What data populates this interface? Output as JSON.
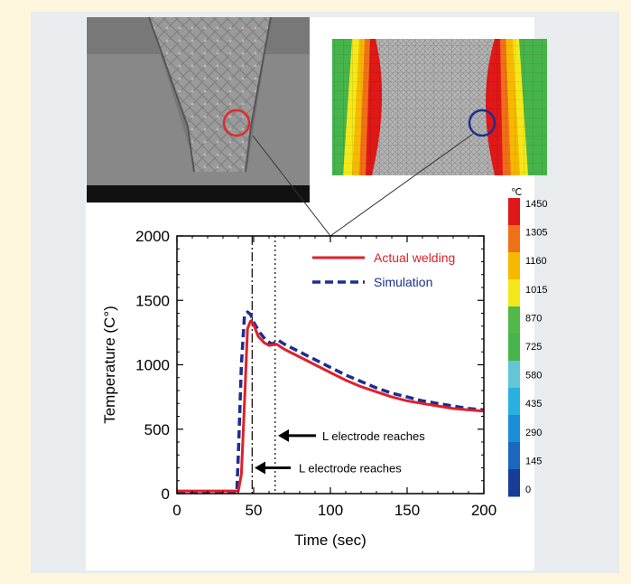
{
  "chart_data": {
    "type": "line",
    "xlabel": "Time (sec)",
    "ylabel": "Temperature (C°)",
    "xlim": [
      0,
      200
    ],
    "ylim": [
      0,
      2000
    ],
    "x_ticks": [
      0,
      50,
      100,
      150,
      200
    ],
    "y_ticks": [
      0,
      500,
      1000,
      1500,
      2000
    ],
    "legend_position": "top-right",
    "series": [
      {
        "name": "Actual welding",
        "color": "#e0202a",
        "style": "solid",
        "points": [
          [
            0,
            20
          ],
          [
            40,
            20
          ],
          [
            42,
            150
          ],
          [
            44,
            700
          ],
          [
            46,
            1280
          ],
          [
            48,
            1340
          ],
          [
            50,
            1310
          ],
          [
            53,
            1220
          ],
          [
            57,
            1170
          ],
          [
            60,
            1150
          ],
          [
            65,
            1160
          ],
          [
            70,
            1120
          ],
          [
            80,
            1060
          ],
          [
            90,
            1000
          ],
          [
            100,
            940
          ],
          [
            110,
            880
          ],
          [
            120,
            830
          ],
          [
            130,
            790
          ],
          [
            140,
            750
          ],
          [
            150,
            720
          ],
          [
            160,
            700
          ],
          [
            170,
            680
          ],
          [
            180,
            660
          ],
          [
            190,
            650
          ],
          [
            200,
            640
          ]
        ]
      },
      {
        "name": "Simulation",
        "color": "#1b2f8f",
        "style": "dashed",
        "points": [
          [
            0,
            10
          ],
          [
            39,
            10
          ],
          [
            40,
            300
          ],
          [
            42,
            1000
          ],
          [
            44,
            1380
          ],
          [
            46,
            1410
          ],
          [
            48,
            1390
          ],
          [
            50,
            1330
          ],
          [
            54,
            1250
          ],
          [
            58,
            1190
          ],
          [
            62,
            1160
          ],
          [
            66,
            1190
          ],
          [
            70,
            1160
          ],
          [
            80,
            1100
          ],
          [
            90,
            1040
          ],
          [
            100,
            980
          ],
          [
            110,
            920
          ],
          [
            120,
            870
          ],
          [
            130,
            820
          ],
          [
            140,
            780
          ],
          [
            150,
            750
          ],
          [
            160,
            720
          ],
          [
            170,
            700
          ],
          [
            180,
            680
          ],
          [
            190,
            660
          ],
          [
            200,
            650
          ]
        ]
      }
    ],
    "vlines": [
      {
        "x": 49,
        "style": "dash-dot"
      },
      {
        "x": 64,
        "style": "dotted"
      }
    ],
    "annotations": [
      {
        "text": "L electrode reaches",
        "x": 67,
        "y": 450
      },
      {
        "text": "L electrode reaches",
        "x": 51,
        "y": 200
      }
    ],
    "colorbar": {
      "unit": "℃",
      "labels": [
        "1450",
        "1305",
        "1160",
        "1015",
        "870",
        "725",
        "580",
        "435",
        "290",
        "145",
        "0"
      ],
      "colors": [
        "#e01818",
        "#f07018",
        "#f7b800",
        "#f4e81a",
        "#52b848",
        "#46b44a",
        "#62c6d6",
        "#2ab0e0",
        "#1a8ed8",
        "#1b67c0",
        "#183c98"
      ]
    }
  },
  "images": {
    "micrograph_label": "weld-cross-section-micrograph",
    "simulation_label": "weld-temperature-simulation-map"
  },
  "colors": {
    "marker_red": "#e32a2a",
    "marker_blue": "#1b2f8f"
  }
}
